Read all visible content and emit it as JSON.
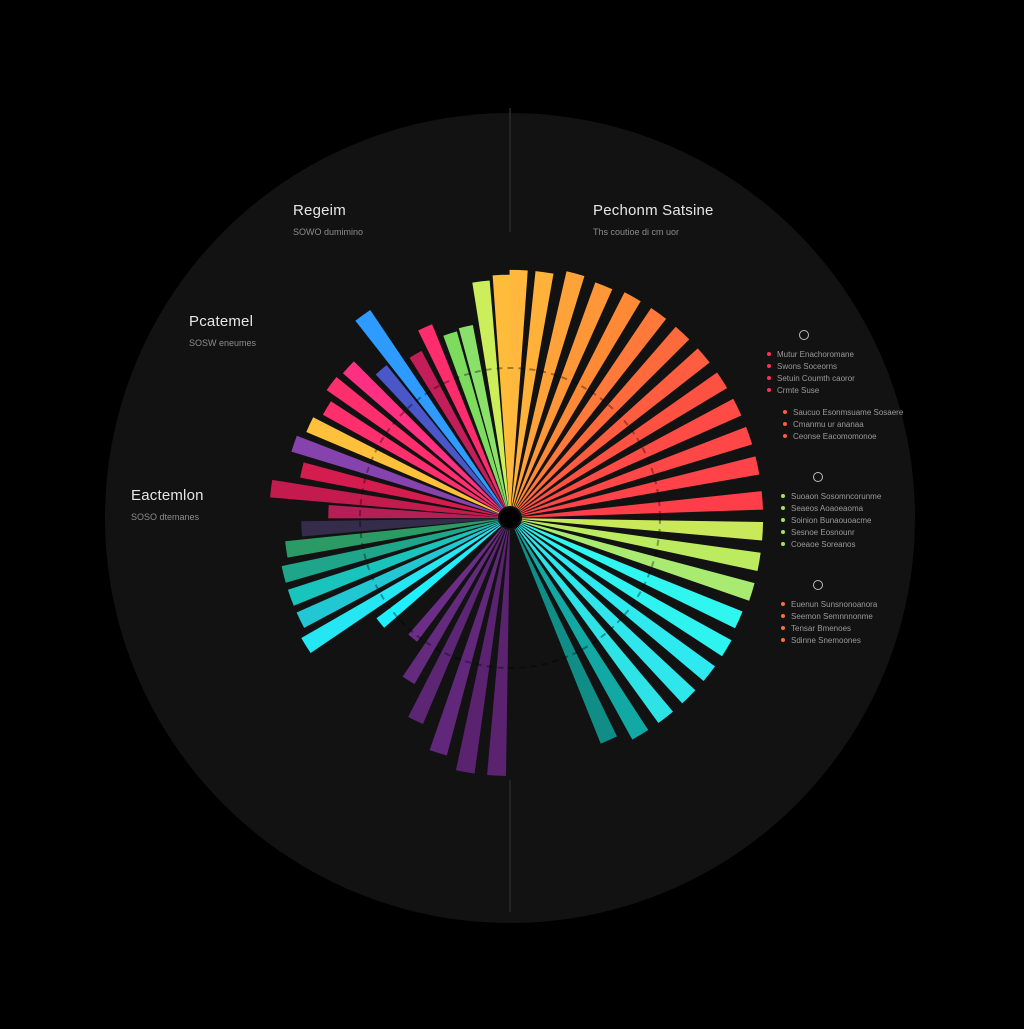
{
  "labels": {
    "top_left": {
      "title": "Regeim",
      "subtitle": "SOWO dumimino"
    },
    "mid_left": {
      "title": "Pcatemel",
      "subtitle": "SOSW eneumes"
    },
    "left": {
      "title": "Eactemlon",
      "subtitle": "SOSO dtemanes"
    },
    "top_right": {
      "title": "Pechonm Satsine",
      "subtitle": "Ths coutioe di cm uor"
    }
  },
  "legend": [
    {
      "items": [
        {
          "text": "Mutur Enachoromane",
          "color": "#ff2e55"
        },
        {
          "text": "Swons Soceorns",
          "color": "#ff2e55"
        },
        {
          "text": "Setuin Coumth caoror",
          "color": "#ff2e55"
        },
        {
          "text": "Crmte Suse",
          "color": "#ff2e55"
        },
        {
          "text": "Saucuo Esonmsuame Sosaere",
          "color": "#ff5a3c"
        },
        {
          "text": "Cmanmu ur ananaa",
          "color": "#ff5a3c"
        },
        {
          "text": "Ceonse Eacomomonoe",
          "color": "#ff5a3c"
        }
      ]
    },
    {
      "items": [
        {
          "text": "Suoaon Sosomncorunme",
          "color": "#9ee36b"
        },
        {
          "text": "Seaeos Aoaoeaoma",
          "color": "#9ee36b"
        },
        {
          "text": "Soinion Bunaouoacme",
          "color": "#9ee36b"
        },
        {
          "text": "Sesnoe Eosnounr",
          "color": "#9ee36b"
        },
        {
          "text": "Coeaoe Soreanos",
          "color": "#9ee36b"
        }
      ]
    },
    {
      "items": [
        {
          "text": "Euenun Sunsnonoanora",
          "color": "#ff6a3a"
        },
        {
          "text": "Seemon Semnnnonme",
          "color": "#ff6a3a"
        },
        {
          "text": "Tensar Bmenoes",
          "color": "#ff6a3a"
        },
        {
          "text": "Sdinne Snemoones",
          "color": "#ff6a3a"
        }
      ]
    }
  ],
  "chart_data": {
    "type": "bar",
    "layout": "radial",
    "start_angle_deg": 0,
    "direction": "clockwise",
    "bar_angular_width_deg": 4.2,
    "value_range": [
      0,
      100
    ],
    "series": [
      {
        "values": [
          {
            "angle": 2,
            "value": 96,
            "color": "#ffb83d"
          },
          {
            "angle": 8,
            "value": 96,
            "color": "#ffb13a"
          },
          {
            "angle": 15,
            "value": 98,
            "color": "#ffa23a"
          },
          {
            "angle": 22,
            "value": 97,
            "color": "#ff9738"
          },
          {
            "angle": 29,
            "value": 98,
            "color": "#ff8a36"
          },
          {
            "angle": 36,
            "value": 98,
            "color": "#ff7a3a"
          },
          {
            "angle": 43,
            "value": 98,
            "color": "#ff6a3c"
          },
          {
            "angle": 50,
            "value": 98,
            "color": "#ff5c40"
          },
          {
            "angle": 57,
            "value": 98,
            "color": "#ff5142"
          },
          {
            "angle": 64,
            "value": 98,
            "color": "#ff4a45"
          },
          {
            "angle": 71,
            "value": 98,
            "color": "#ff4748"
          },
          {
            "angle": 78,
            "value": 98,
            "color": "#ff4348"
          },
          {
            "angle": 86,
            "value": 98,
            "color": "#ff3e4a"
          },
          {
            "angle": 93,
            "value": 98,
            "color": "#c9e95a"
          },
          {
            "angle": 100,
            "value": 98,
            "color": "#bdeb60"
          },
          {
            "angle": 107,
            "value": 98,
            "color": "#a8eb70"
          },
          {
            "angle": 114,
            "value": 97,
            "color": "#2ff7ef"
          },
          {
            "angle": 121,
            "value": 98,
            "color": "#2ef3ee"
          },
          {
            "angle": 128,
            "value": 98,
            "color": "#2eeaf0"
          },
          {
            "angle": 135,
            "value": 98,
            "color": "#2ee6ec"
          },
          {
            "angle": 142,
            "value": 98,
            "color": "#2ee3e6"
          },
          {
            "angle": 149,
            "value": 98,
            "color": "#12a8a4"
          },
          {
            "angle": 156,
            "value": 94,
            "color": "#0f8d86"
          },
          {
            "angle": 183,
            "value": 100,
            "color": "#5b2270"
          },
          {
            "angle": 190,
            "value": 100,
            "color": "#5a226f"
          },
          {
            "angle": 197,
            "value": 95,
            "color": "#61277a"
          },
          {
            "angle": 205,
            "value": 86,
            "color": "#5c2675"
          },
          {
            "angle": 212,
            "value": 73,
            "color": "#632a7d"
          },
          {
            "angle": 219,
            "value": 58,
            "color": "#6c2d87"
          },
          {
            "angle": 231,
            "value": 63,
            "color": "#1ff0ff"
          },
          {
            "angle": 238,
            "value": 93,
            "color": "#24e7f3"
          },
          {
            "angle": 244,
            "value": 90,
            "color": "#21c8d4"
          },
          {
            "angle": 250,
            "value": 90,
            "color": "#19c4bd"
          },
          {
            "angle": 256,
            "value": 90,
            "color": "#1fa68a"
          },
          {
            "angle": 262,
            "value": 87,
            "color": "#2c9a64"
          },
          {
            "angle": 267,
            "value": 80,
            "color": "#352b4b"
          },
          {
            "angle": 272,
            "value": 69,
            "color": "#b31f56"
          },
          {
            "angle": 277,
            "value": 93,
            "color": "#c41b4e"
          },
          {
            "angle": 283,
            "value": 82,
            "color": "#d41c4f"
          },
          {
            "angle": 289,
            "value": 88,
            "color": "#8743ad"
          },
          {
            "angle": 295,
            "value": 85,
            "color": "#ffc13b"
          },
          {
            "angle": 301,
            "value": 82,
            "color": "#ff2e6d"
          },
          {
            "angle": 307,
            "value": 86,
            "color": "#ff2e6d"
          },
          {
            "angle": 313,
            "value": 85,
            "color": "#ff3081"
          },
          {
            "angle": 319,
            "value": 75,
            "color": "#4957c9"
          },
          {
            "angle": 324,
            "value": 97,
            "color": "#2d9bff"
          },
          {
            "angle": 330,
            "value": 72,
            "color": "#c31e59"
          },
          {
            "angle": 336,
            "value": 80,
            "color": "#ff2c6e"
          },
          {
            "angle": 342,
            "value": 74,
            "color": "#7ddc5e"
          },
          {
            "angle": 347,
            "value": 75,
            "color": "#8be06a"
          },
          {
            "angle": 353,
            "value": 92,
            "color": "#ccee5a"
          },
          {
            "angle": 358,
            "value": 94,
            "color": "#ffbb3a"
          }
        ]
      }
    ],
    "colors": {
      "background": "#000000",
      "disc": "#121212",
      "divider": "#2a2a2a"
    }
  }
}
